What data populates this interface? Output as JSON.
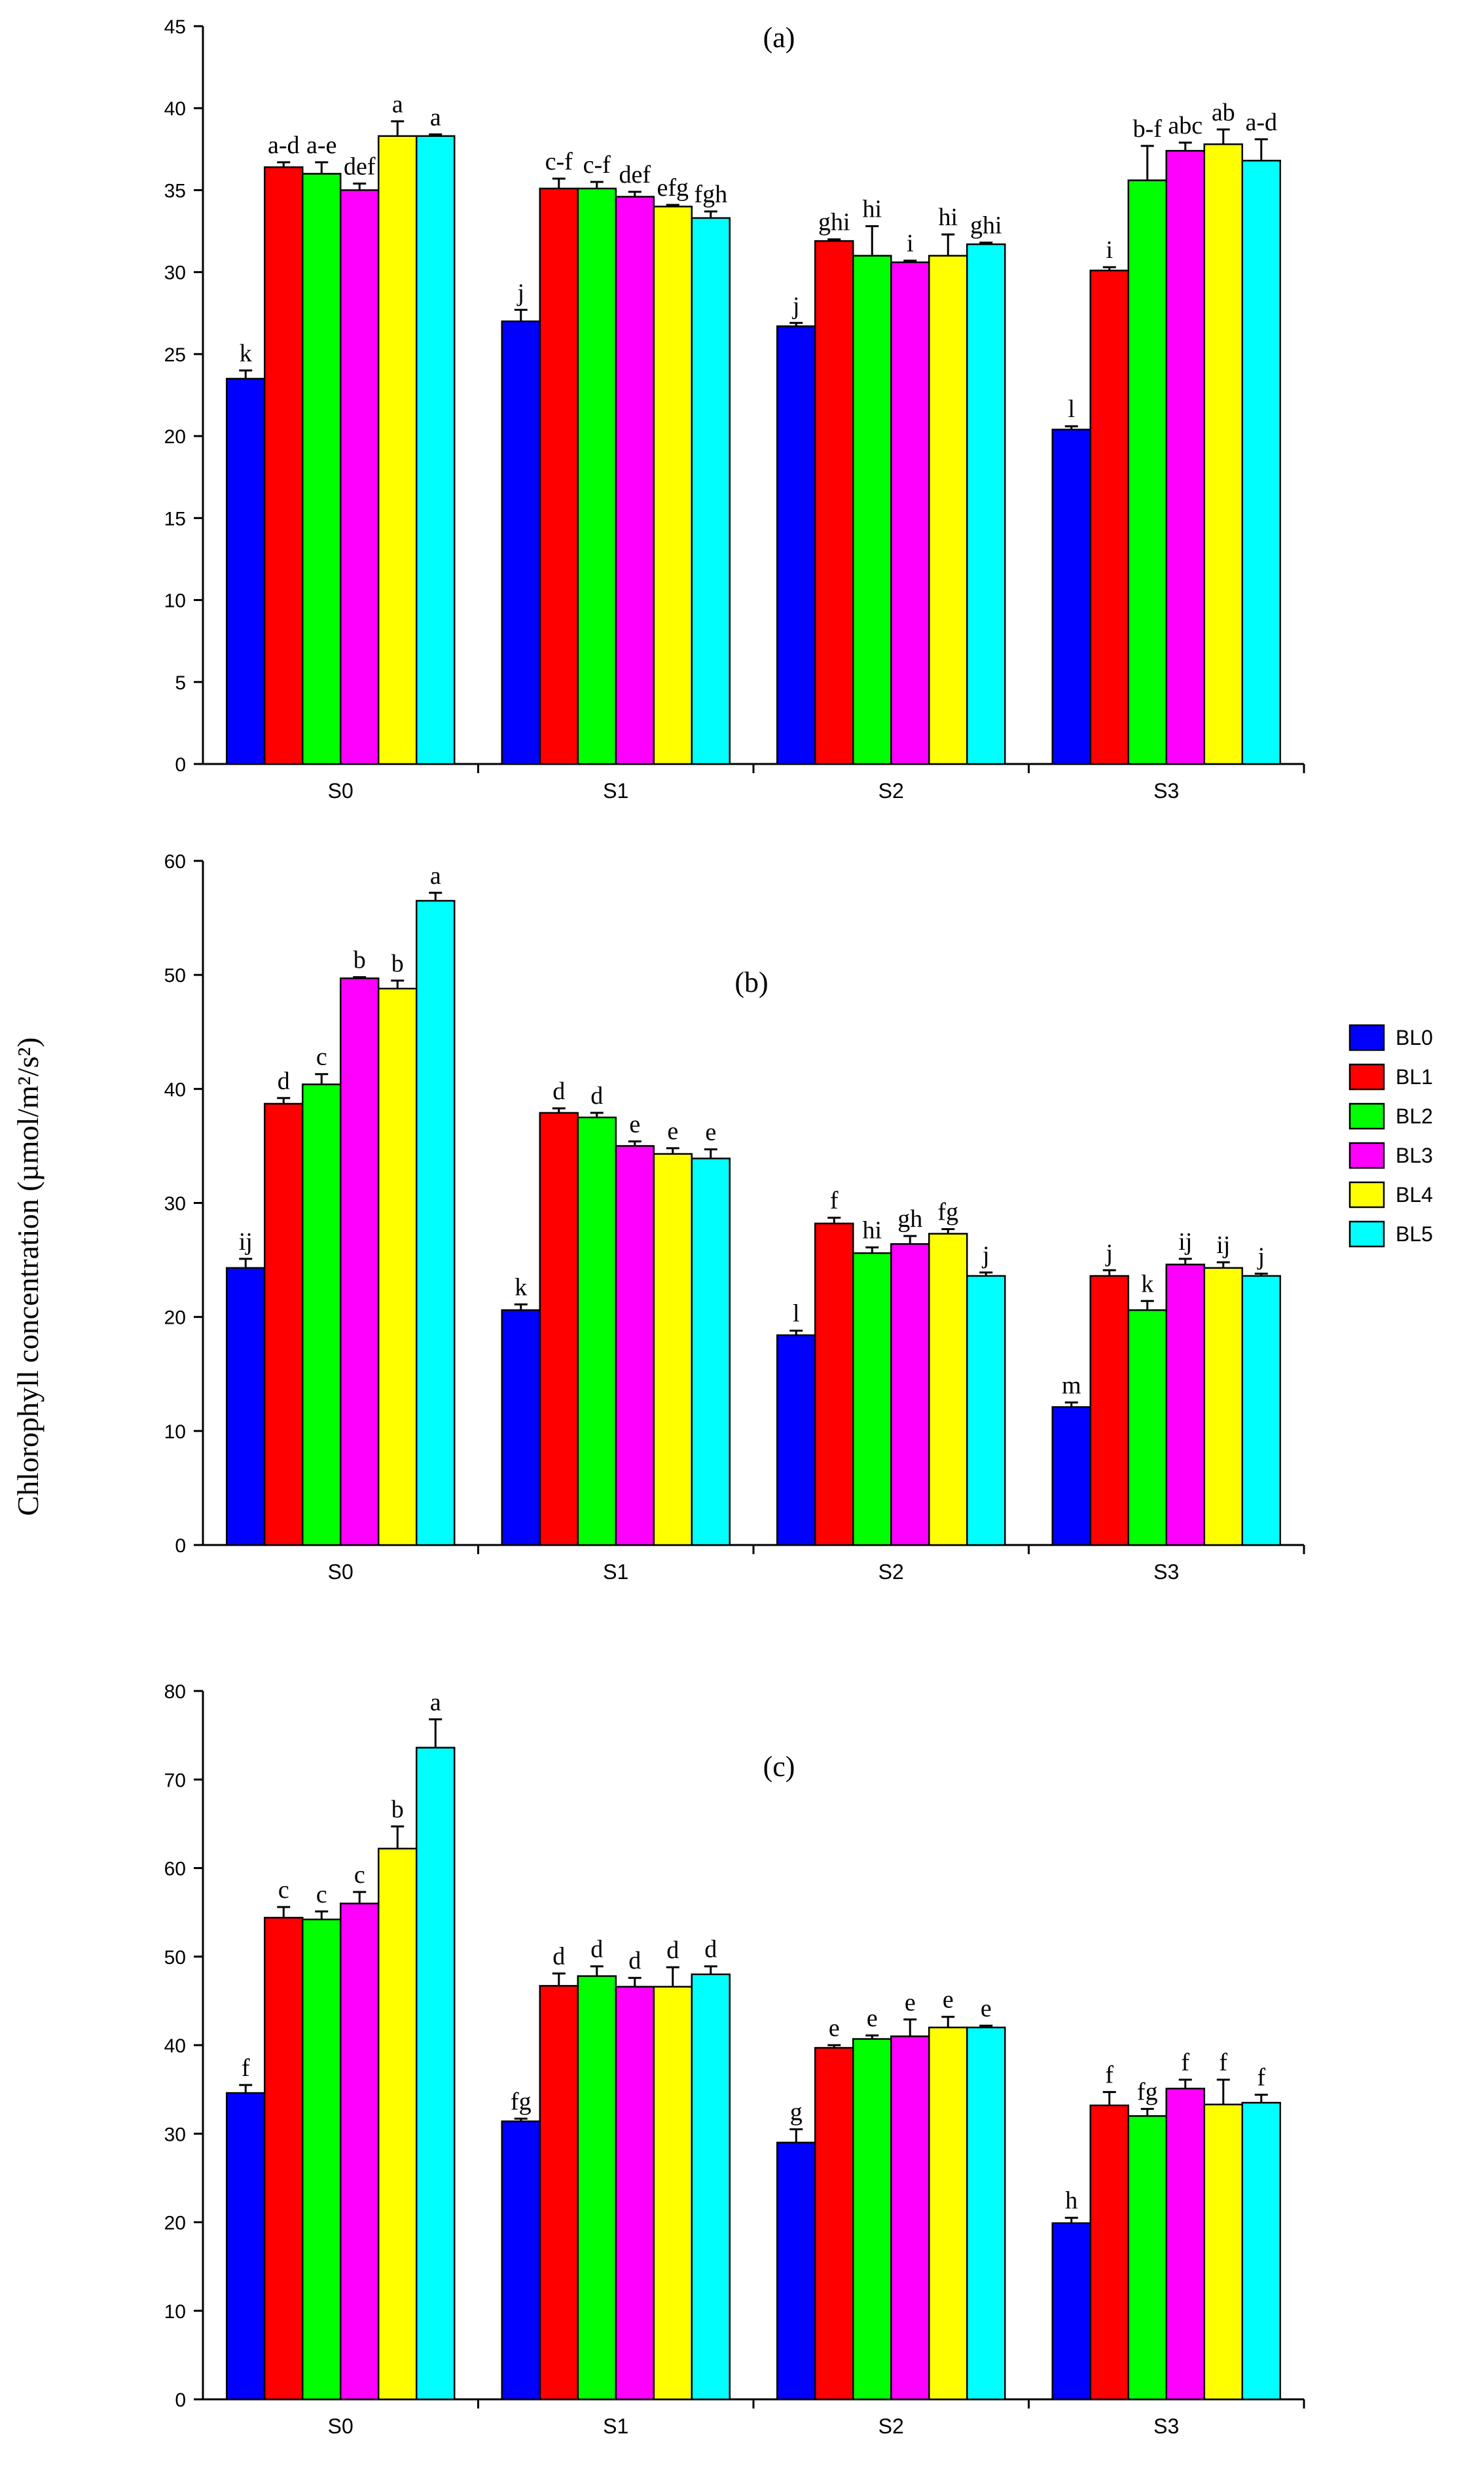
{
  "ylabel": "Chlorophyll concentration (µmol/m²/s²)",
  "series_colors": {
    "BL0": "#0000ff",
    "BL1": "#ff0000",
    "BL2": "#00ff00",
    "BL3": "#ff00ff",
    "BL4": "#ffff00",
    "BL5": "#00ffff"
  },
  "legend": [
    "BL0",
    "BL1",
    "BL2",
    "BL3",
    "BL4",
    "BL5"
  ],
  "chart_data": [
    {
      "type": "bar",
      "panel": "(a)",
      "categories": [
        "S0",
        "S1",
        "S2",
        "S3"
      ],
      "ylim": [
        0,
        45
      ],
      "yticks": [
        0,
        5,
        10,
        15,
        20,
        25,
        30,
        35,
        40,
        45
      ],
      "series": [
        {
          "name": "BL0",
          "values": [
            23.5,
            27.0,
            26.7,
            20.4
          ],
          "errors": [
            0.5,
            0.7,
            0.2,
            0.2
          ],
          "letters": [
            "k",
            "j",
            "j",
            "l"
          ]
        },
        {
          "name": "BL1",
          "values": [
            36.4,
            35.1,
            31.9,
            30.1
          ],
          "errors": [
            0.3,
            0.6,
            0.1,
            0.2
          ],
          "letters": [
            "a-d",
            "c-f",
            "ghi",
            "i"
          ]
        },
        {
          "name": "BL2",
          "values": [
            36.0,
            35.1,
            31.0,
            35.6
          ],
          "errors": [
            0.7,
            0.4,
            1.8,
            2.1
          ],
          "letters": [
            "a-e",
            "c-f",
            "hi",
            "b-f"
          ]
        },
        {
          "name": "BL3",
          "values": [
            35.0,
            34.6,
            30.6,
            37.4
          ],
          "errors": [
            0.4,
            0.3,
            0.1,
            0.5
          ],
          "letters": [
            "def",
            "def",
            "i",
            "abc"
          ]
        },
        {
          "name": "BL4",
          "values": [
            38.3,
            34.0,
            31.0,
            37.8
          ],
          "errors": [
            0.9,
            0.1,
            1.3,
            0.9
          ],
          "letters": [
            "a",
            "efg",
            "hi",
            "ab"
          ]
        },
        {
          "name": "BL5",
          "values": [
            38.3,
            33.3,
            31.7,
            36.8
          ],
          "errors": [
            0.1,
            0.4,
            0.1,
            1.3
          ],
          "letters": [
            "a",
            "fgh",
            "ghi",
            "a-d"
          ]
        }
      ]
    },
    {
      "type": "bar",
      "panel": "(b)",
      "categories": [
        "S0",
        "S1",
        "S2",
        "S3"
      ],
      "ylim": [
        0,
        60
      ],
      "yticks": [
        0,
        10,
        20,
        30,
        40,
        50,
        60
      ],
      "series": [
        {
          "name": "BL0",
          "values": [
            24.3,
            20.6,
            18.4,
            12.1
          ],
          "errors": [
            0.8,
            0.5,
            0.4,
            0.4
          ],
          "letters": [
            "ij",
            "k",
            "l",
            "m"
          ]
        },
        {
          "name": "BL1",
          "values": [
            38.7,
            37.9,
            28.2,
            23.6
          ],
          "errors": [
            0.5,
            0.4,
            0.5,
            0.5
          ],
          "letters": [
            "d",
            "d",
            "f",
            "j"
          ]
        },
        {
          "name": "BL2",
          "values": [
            40.4,
            37.5,
            25.6,
            20.6
          ],
          "errors": [
            0.9,
            0.4,
            0.5,
            0.8
          ],
          "letters": [
            "c",
            "d",
            "hi",
            "k"
          ]
        },
        {
          "name": "BL3",
          "values": [
            49.7,
            35.0,
            26.4,
            24.6
          ],
          "errors": [
            0.1,
            0.4,
            0.7,
            0.5
          ],
          "letters": [
            "b",
            "e",
            "gh",
            "ij"
          ]
        },
        {
          "name": "BL4",
          "values": [
            48.8,
            34.3,
            27.3,
            24.3
          ],
          "errors": [
            0.7,
            0.5,
            0.4,
            0.5
          ],
          "letters": [
            "b",
            "e",
            "fg",
            "ij"
          ]
        },
        {
          "name": "BL5",
          "values": [
            56.5,
            33.9,
            23.6,
            23.6
          ],
          "errors": [
            0.7,
            0.8,
            0.3,
            0.2
          ],
          "letters": [
            "a",
            "e",
            "j",
            "j"
          ]
        }
      ]
    },
    {
      "type": "bar",
      "panel": "(c)",
      "categories": [
        "S0",
        "S1",
        "S2",
        "S3"
      ],
      "ylim": [
        0,
        80
      ],
      "yticks": [
        0,
        10,
        20,
        30,
        40,
        50,
        60,
        70,
        80
      ],
      "series": [
        {
          "name": "BL0",
          "values": [
            34.6,
            31.4,
            29.0,
            19.9
          ],
          "errors": [
            0.9,
            0.3,
            1.5,
            0.6
          ],
          "letters": [
            "f",
            "fg",
            "g",
            "h"
          ]
        },
        {
          "name": "BL1",
          "values": [
            54.4,
            46.7,
            39.7,
            33.2
          ],
          "errors": [
            1.2,
            1.4,
            0.3,
            1.5
          ],
          "letters": [
            "c",
            "d",
            "e",
            "f"
          ]
        },
        {
          "name": "BL2",
          "values": [
            54.2,
            47.8,
            40.7,
            32.0
          ],
          "errors": [
            0.9,
            1.1,
            0.4,
            0.8
          ],
          "letters": [
            "c",
            "d",
            "e",
            "fg"
          ]
        },
        {
          "name": "BL3",
          "values": [
            56.0,
            46.6,
            41.0,
            35.1
          ],
          "errors": [
            1.3,
            1.0,
            1.9,
            1.0
          ],
          "letters": [
            "c",
            "d",
            "e",
            "f"
          ]
        },
        {
          "name": "BL4",
          "values": [
            62.2,
            46.6,
            42.0,
            33.3
          ],
          "errors": [
            2.5,
            2.2,
            1.2,
            2.8
          ],
          "letters": [
            "b",
            "d",
            "e",
            "f"
          ]
        },
        {
          "name": "BL5",
          "values": [
            73.6,
            48.0,
            42.0,
            33.5
          ],
          "errors": [
            3.2,
            0.9,
            0.2,
            0.9
          ],
          "letters": [
            "a",
            "d",
            "e",
            "f"
          ]
        }
      ]
    }
  ]
}
